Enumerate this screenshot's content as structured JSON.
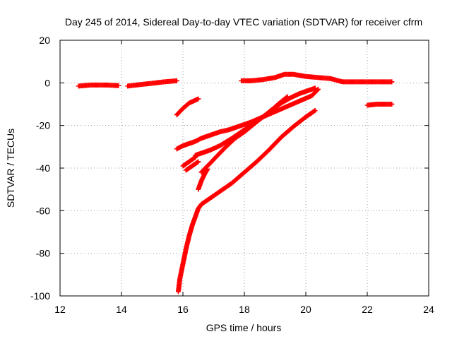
{
  "chart_data": {
    "type": "scatter",
    "title": "Day 245 of 2014, Sidereal Day-to-day VTEC variation (SDTVAR) for receiver cfrm",
    "xlabel": "GPS time / hours",
    "ylabel": "SDTVAR / TECUs",
    "xlim": [
      12,
      24
    ],
    "ylim": [
      -100,
      20
    ],
    "xticks": [
      12,
      14,
      16,
      18,
      20,
      22,
      24
    ],
    "yticks": [
      -100,
      -80,
      -60,
      -40,
      -20,
      0,
      20
    ],
    "grid": true,
    "marker": "plus",
    "color": "#ff0000",
    "series": [
      {
        "x": [
          12.6,
          13.0,
          13.5,
          13.9
        ],
        "y": [
          -1.5,
          -1.0,
          -1.0,
          -1.3
        ]
      },
      {
        "x": [
          14.2,
          14.6,
          15.0,
          15.4,
          15.8
        ],
        "y": [
          -1.5,
          -0.8,
          -0.2,
          0.5,
          1.0
        ]
      },
      {
        "x": [
          15.8,
          16.0,
          16.2,
          16.5
        ],
        "y": [
          -15,
          -12,
          -9.5,
          -7.5
        ]
      },
      {
        "x": [
          15.8,
          16.0,
          16.2,
          16.4,
          16.6,
          16.9,
          17.2,
          17.5,
          17.8,
          18.2,
          18.6,
          19.0,
          19.4,
          19.8,
          20.2,
          20.4
        ],
        "y": [
          -31,
          -29.5,
          -28.5,
          -27.5,
          -26,
          -24.5,
          -23,
          -22,
          -20.5,
          -18.5,
          -16,
          -13.5,
          -11,
          -8.5,
          -6,
          -3
        ]
      },
      {
        "x": [
          16.0,
          16.2,
          16.4
        ],
        "y": [
          -39,
          -37,
          -35
        ]
      },
      {
        "x": [
          16.1,
          16.3,
          16.5
        ],
        "y": [
          -41,
          -39,
          -37
        ]
      },
      {
        "x": [
          16.4,
          16.6,
          16.9,
          17.2,
          17.6,
          18.0,
          18.4,
          18.8,
          19.1,
          19.4
        ],
        "y": [
          -34,
          -33,
          -31.5,
          -29.5,
          -26,
          -22,
          -18,
          -14,
          -10,
          -6.5
        ]
      },
      {
        "x": [
          16.5,
          16.6,
          16.7,
          16.8
        ],
        "y": [
          -50,
          -46,
          -43,
          -40.5
        ]
      },
      {
        "x": [
          16.6,
          16.8,
          17.0,
          17.2,
          17.4,
          17.7,
          18.0,
          18.3,
          18.6,
          18.9,
          19.2,
          19.5,
          19.8,
          20.1,
          20.3
        ],
        "y": [
          -42,
          -39,
          -36,
          -33,
          -30,
          -26,
          -23,
          -19.5,
          -16,
          -12.5,
          -9.5,
          -7,
          -5,
          -3.5,
          -2.5
        ]
      },
      {
        "x": [
          15.85,
          15.9,
          16.0,
          16.1,
          16.2,
          16.3,
          16.4,
          16.5,
          16.6,
          16.8,
          17.0,
          17.3,
          17.6,
          18.0,
          18.4,
          18.8,
          19.2,
          19.6,
          20.0,
          20.3
        ],
        "y": [
          -98,
          -92,
          -85,
          -78,
          -72,
          -67,
          -63,
          -59,
          -57,
          -55,
          -53,
          -50,
          -47,
          -42,
          -37,
          -31.5,
          -25.5,
          -20.5,
          -16,
          -13
        ]
      },
      {
        "x": [
          17.9,
          18.2,
          18.6,
          19.0,
          19.3,
          19.6,
          20.0,
          20.4,
          20.8,
          21.2,
          21.6,
          22.0,
          22.4,
          22.8
        ],
        "y": [
          1.0,
          1.0,
          1.5,
          2.5,
          4.0,
          4.0,
          3.0,
          2.5,
          2.0,
          0.5,
          0.5,
          0.5,
          0.5,
          0.5
        ]
      },
      {
        "x": [
          22.0,
          22.3,
          22.6,
          22.8
        ],
        "y": [
          -10.5,
          -10,
          -10,
          -10
        ]
      }
    ]
  }
}
